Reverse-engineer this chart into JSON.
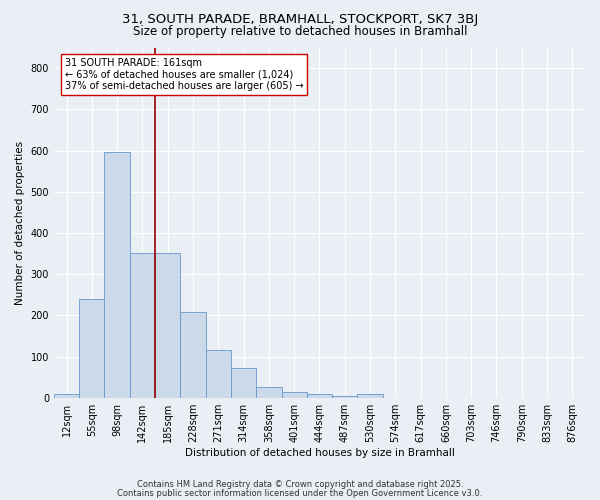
{
  "title1": "31, SOUTH PARADE, BRAMHALL, STOCKPORT, SK7 3BJ",
  "title2": "Size of property relative to detached houses in Bramhall",
  "xlabel": "Distribution of detached houses by size in Bramhall",
  "ylabel": "Number of detached properties",
  "bin_labels": [
    "12sqm",
    "55sqm",
    "98sqm",
    "142sqm",
    "185sqm",
    "228sqm",
    "271sqm",
    "314sqm",
    "358sqm",
    "401sqm",
    "444sqm",
    "487sqm",
    "530sqm",
    "574sqm",
    "617sqm",
    "660sqm",
    "703sqm",
    "746sqm",
    "790sqm",
    "833sqm",
    "876sqm"
  ],
  "bar_values": [
    8,
    240,
    597,
    352,
    352,
    207,
    117,
    72,
    27,
    13,
    10,
    5,
    8,
    0,
    0,
    0,
    0,
    0,
    0,
    0,
    0
  ],
  "bar_color": "#ccd9e8",
  "bar_edge_color": "#6699cc",
  "vline_x": 3.5,
  "vline_color": "#990000",
  "annotation_line1": "31 SOUTH PARADE: 161sqm",
  "annotation_line2": "← 63% of detached houses are smaller (1,024)",
  "annotation_line3": "37% of semi-detached houses are larger (605) →",
  "annotation_box_color": "#ffffff",
  "annotation_box_edge": "#cc0000",
  "ylim": [
    0,
    850
  ],
  "yticks": [
    0,
    100,
    200,
    300,
    400,
    500,
    600,
    700,
    800
  ],
  "footer1": "Contains HM Land Registry data © Crown copyright and database right 2025.",
  "footer2": "Contains public sector information licensed under the Open Government Licence v3.0.",
  "bg_color": "#eaeef5",
  "plot_bg_color": "#eaeef5",
  "grid_color": "#ffffff",
  "title1_fontsize": 9.5,
  "title2_fontsize": 8.5,
  "axis_label_fontsize": 7.5,
  "tick_fontsize": 7,
  "annotation_fontsize": 7,
  "footer_fontsize": 6
}
